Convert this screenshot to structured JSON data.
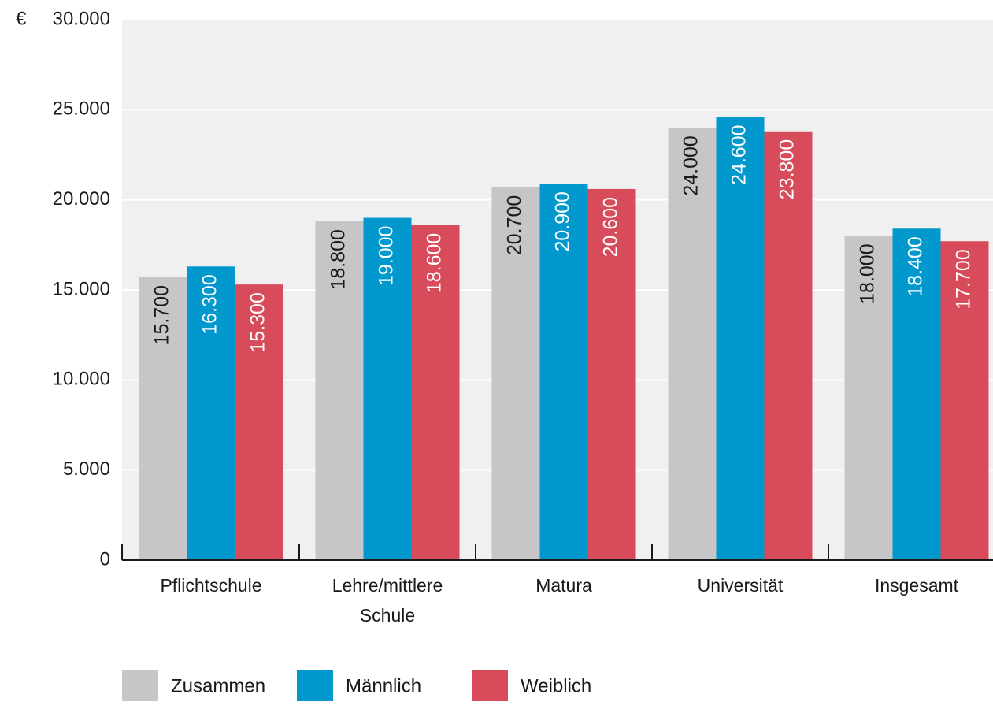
{
  "chart_data": {
    "type": "bar",
    "y_unit": "€",
    "categories": [
      "Pflichtschule",
      "Lehre/mittlere Schule",
      "Matura",
      "Universität",
      "Insgesamt"
    ],
    "series": [
      {
        "name": "Zusammen",
        "color": "#c6c6c8",
        "values": [
          15700,
          18800,
          20700,
          24000,
          18000
        ],
        "value_labels": [
          "15.700",
          "18.800",
          "20.700",
          "24.000",
          "18.000"
        ]
      },
      {
        "name": "Männlich",
        "color": "#0098cd",
        "values": [
          16300,
          19000,
          20900,
          24600,
          18400
        ],
        "value_labels": [
          "16.300",
          "19.000",
          "20.900",
          "24.600",
          "18.400"
        ]
      },
      {
        "name": "Weiblich",
        "color": "#d84b5b",
        "values": [
          15300,
          18600,
          20600,
          23800,
          17700
        ],
        "value_labels": [
          "15.300",
          "18.600",
          "20.600",
          "23.800",
          "17.700"
        ]
      }
    ],
    "ylim": [
      0,
      30000
    ],
    "yticks": [
      {
        "value": 0,
        "label": "0"
      },
      {
        "value": 5000,
        "label": "5.000"
      },
      {
        "value": 10000,
        "label": "10.000"
      },
      {
        "value": 15000,
        "label": "15.000"
      },
      {
        "value": 20000,
        "label": "20.000"
      },
      {
        "value": 25000,
        "label": "25.000"
      },
      {
        "value": 30000,
        "label": "30.000"
      }
    ],
    "grid": true
  }
}
